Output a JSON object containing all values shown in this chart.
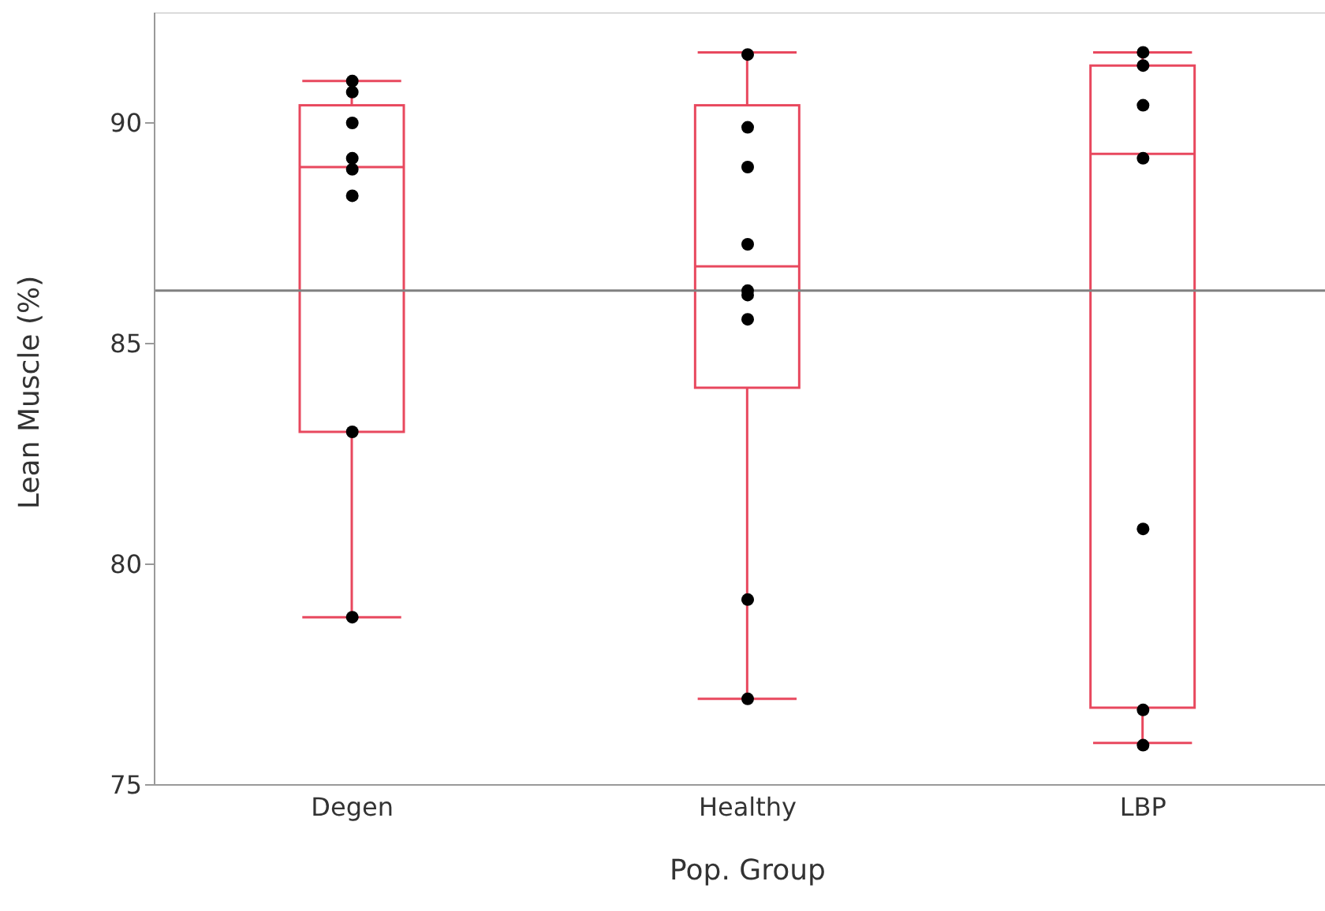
{
  "chart_data": {
    "type": "box",
    "xlabel": "Pop. Group",
    "ylabel": "Lean Muscle (%)",
    "categories": [
      "Degen",
      "Healthy",
      "LBP"
    ],
    "series": [
      {
        "type": "box",
        "color": "#e8485e",
        "boxes": [
          {
            "low": 78.8,
            "q1": 83.0,
            "median": 89.0,
            "q3": 90.4,
            "high": 90.95
          },
          {
            "low": 76.95,
            "q1": 84.0,
            "median": 86.75,
            "q3": 90.4,
            "high": 91.6
          },
          {
            "low": 75.95,
            "q1": 76.75,
            "median": 89.3,
            "q3": 91.3,
            "high": 91.6
          }
        ]
      },
      {
        "type": "scatter",
        "color": "#000000",
        "marker": "circle",
        "x": [
          "Degen",
          "Degen",
          "Degen",
          "Degen",
          "Degen",
          "Degen",
          "Degen",
          "Degen",
          "Healthy",
          "Healthy",
          "Healthy",
          "Healthy",
          "Healthy",
          "Healthy",
          "Healthy",
          "Healthy",
          "Healthy",
          "LBP",
          "LBP",
          "LBP",
          "LBP",
          "LBP",
          "LBP",
          "LBP"
        ],
        "values": [
          90.95,
          90.7,
          90.0,
          89.2,
          88.95,
          88.35,
          83.0,
          78.8,
          91.55,
          89.9,
          89.0,
          87.25,
          86.2,
          86.1,
          85.55,
          79.2,
          76.95,
          91.6,
          91.3,
          90.4,
          89.2,
          80.8,
          76.7,
          75.9
        ]
      }
    ],
    "ylim": [
      75,
      92.5
    ],
    "yticks": [
      75,
      80,
      85,
      90
    ],
    "grid": false,
    "legend": false,
    "ref_lines": [
      {
        "axis": "y",
        "value": 86.2,
        "color": "#808080"
      }
    ]
  }
}
